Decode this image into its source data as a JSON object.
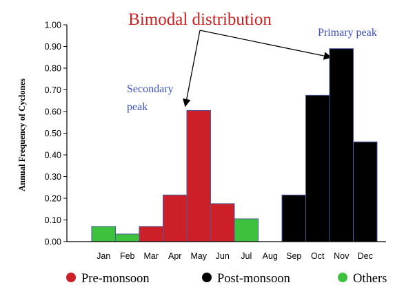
{
  "chart_data": {
    "type": "bar",
    "title": "Bimodal distribution",
    "xlabel": "",
    "ylabel": "Annual Frequency of Cyclones",
    "ylim": [
      0,
      1.0
    ],
    "yticks": [
      "0.00",
      "0.10",
      "0.20",
      "0.30",
      "0.40",
      "0.50",
      "0.60",
      "0.70",
      "0.80",
      "0.90",
      "1.00"
    ],
    "categories": [
      "Jan",
      "Feb",
      "Mar",
      "Apr",
      "May",
      "Jun",
      "Jul",
      "Aug",
      "Sep",
      "Oct",
      "Nov",
      "Dec"
    ],
    "values": [
      0.07,
      0.035,
      0.07,
      0.215,
      0.605,
      0.175,
      0.105,
      0,
      0.215,
      0.675,
      0.89,
      0.46
    ],
    "groups": [
      "Others",
      "Others",
      "Pre-monsoon",
      "Pre-monsoon",
      "Pre-monsoon",
      "Pre-monsoon",
      "Others",
      "Others",
      "Post-monsoon",
      "Post-monsoon",
      "Post-monsoon",
      "Post-monsoon"
    ],
    "colors": {
      "Pre-monsoon": "#cc1f27",
      "Post-monsoon": "#000000",
      "Others": "#3ec23e"
    },
    "legend": [
      {
        "label": "Pre-monsoon",
        "color": "#cc1f27"
      },
      {
        "label": "Post-monsoon",
        "color": "#000000"
      },
      {
        "label": "Others",
        "color": "#3ec23e"
      }
    ],
    "legend_position": "bottom",
    "annotations": {
      "secondary_line1": "Secondary",
      "secondary_line2": "peak",
      "primary": "Primary peak"
    },
    "grid": false
  }
}
